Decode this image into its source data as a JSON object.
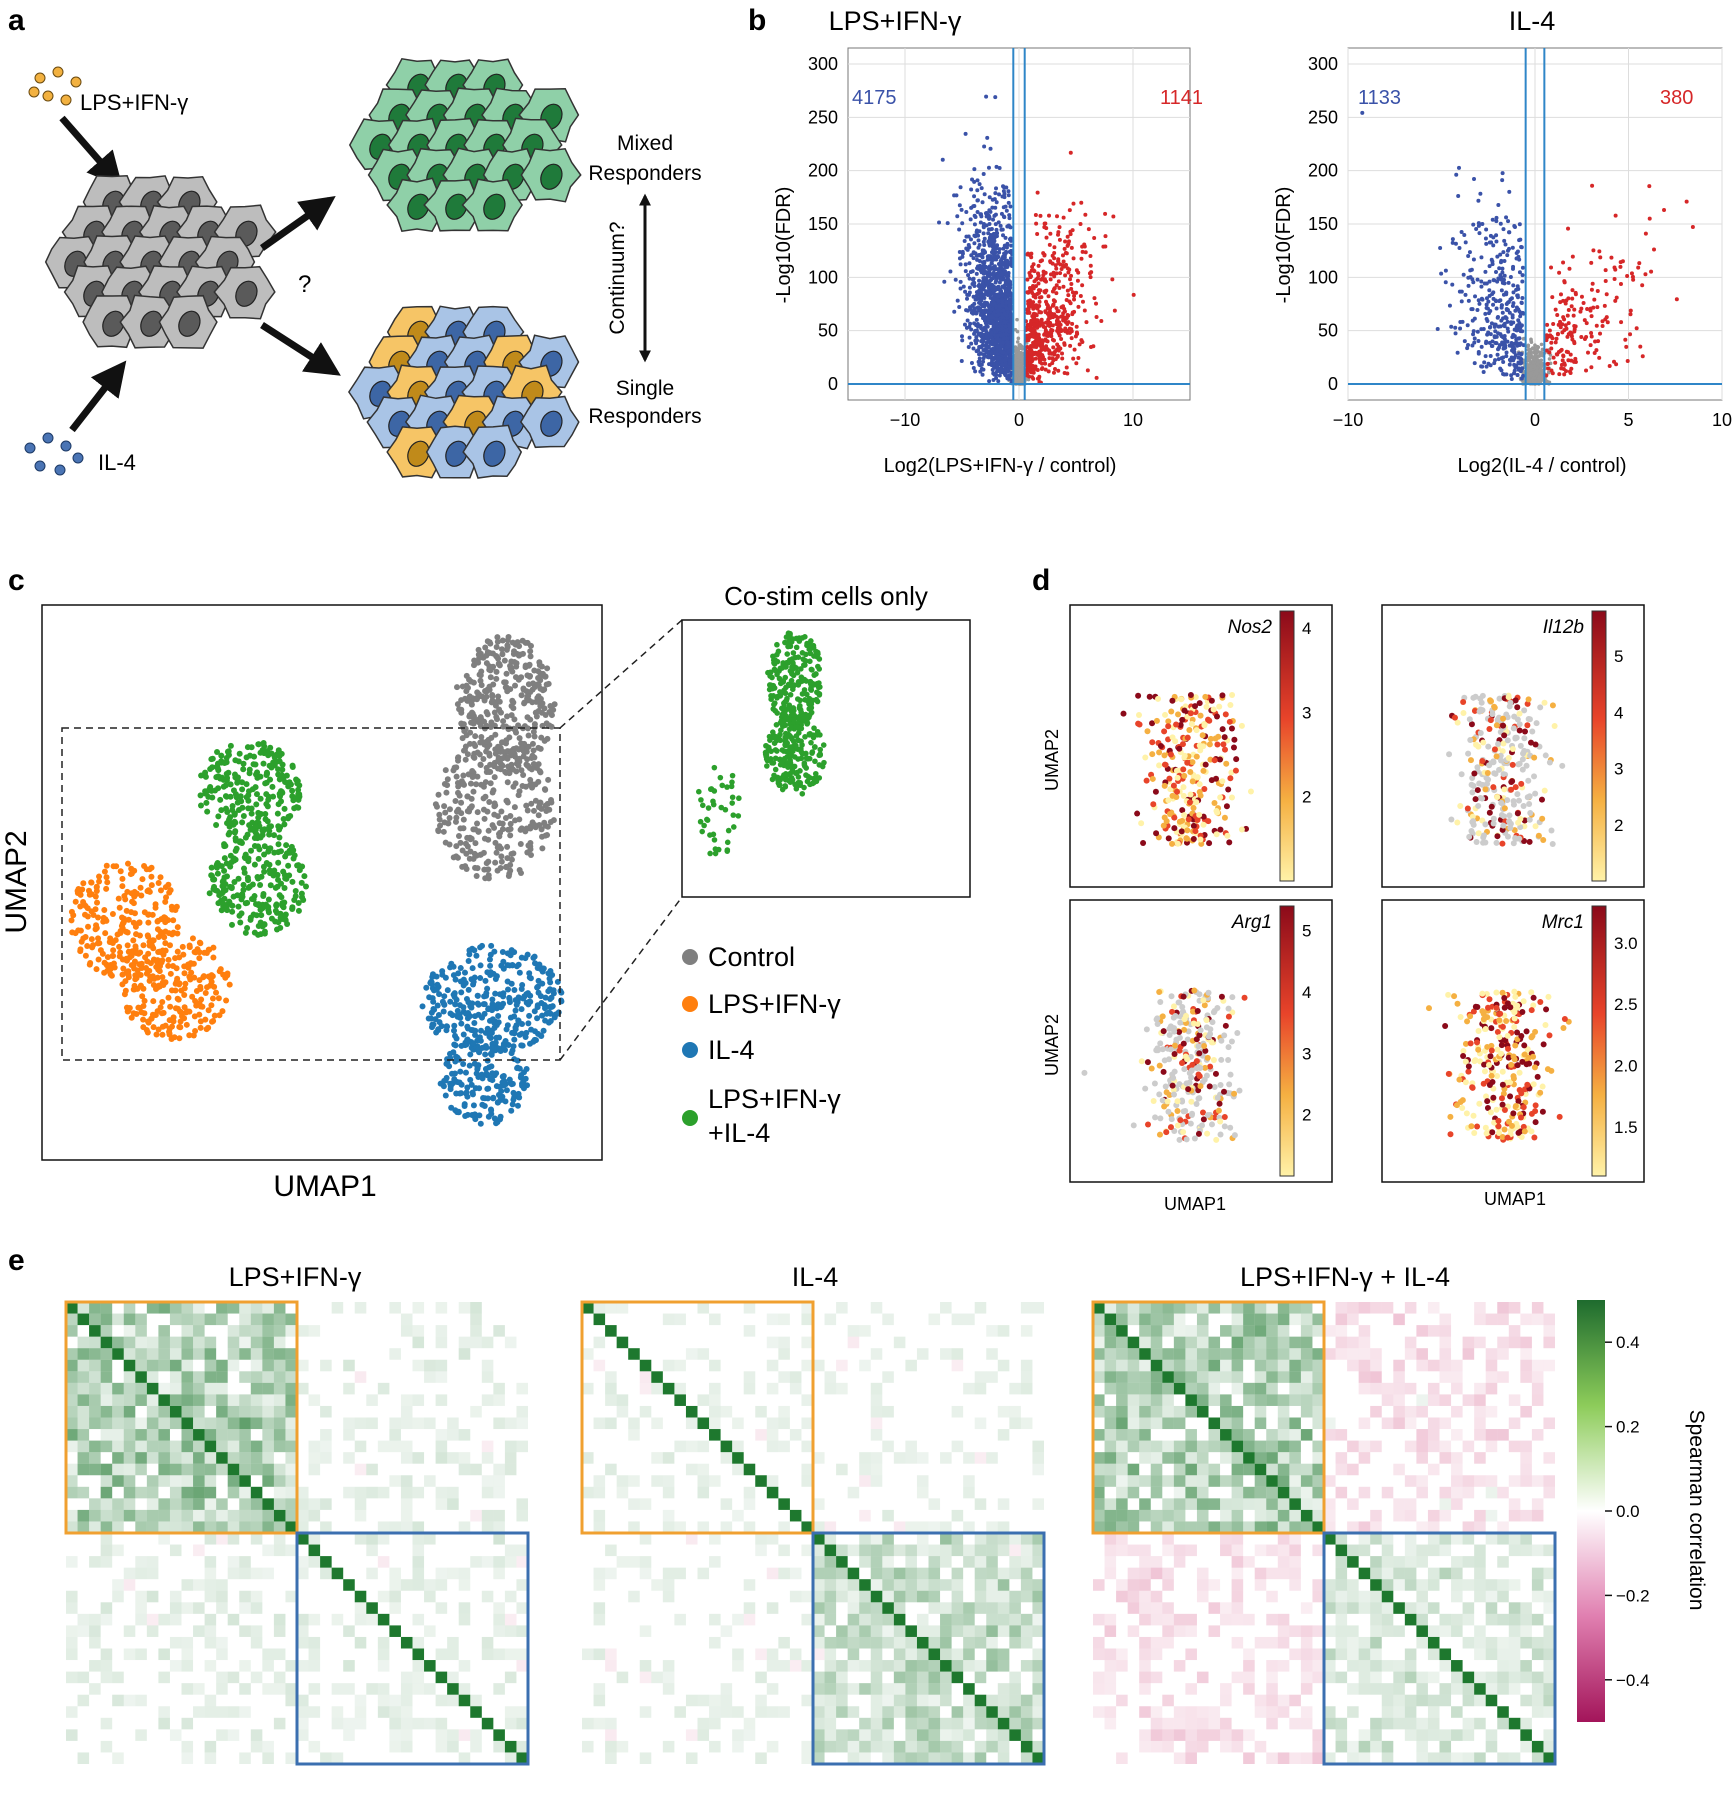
{
  "panel_labels": {
    "a": "a",
    "b": "b",
    "c": "c",
    "d": "d",
    "e": "e"
  },
  "panel_a": {
    "stim1": "LPS+IFN-γ",
    "stim2": "IL-4",
    "question": "?",
    "mixed": [
      "Mixed",
      "Responders"
    ],
    "single": [
      "Single",
      "Responders"
    ],
    "continuum": "Continuum?",
    "colors": {
      "stim1": "#f2b140",
      "stim2": "#4a74b4",
      "gray_cell": "#bdbdbd",
      "green_cell": "#8fd0a8",
      "orange_cell": "#f6c566",
      "blue_cell": "#a9c4e6"
    }
  },
  "panel_b": {
    "volcano_left": {
      "title": "LPS+IFN-γ",
      "ylabel": "-Log10(FDR)",
      "xlabel": "Log2(LPS+IFN-γ / control)",
      "xticks": [
        -10,
        0,
        10
      ],
      "yticks": [
        0,
        50,
        100,
        150,
        200,
        250,
        300
      ],
      "xlim": [
        -15,
        15
      ],
      "ylim": [
        -15,
        315
      ],
      "thresholds_x": [
        -0.5,
        0.5
      ],
      "down_count": "4175",
      "up_count": "1141",
      "down_color": "#3a52a8",
      "up_color": "#d62728"
    },
    "volcano_right": {
      "title": "IL-4",
      "ylabel": "-Log10(FDR)",
      "xlabel": "Log2(IL-4 / control)",
      "xticks": [
        -10,
        0,
        5,
        10
      ],
      "yticks": [
        0,
        50,
        100,
        150,
        200,
        250,
        300
      ],
      "xlim": [
        -10,
        10
      ],
      "ylim": [
        -15,
        315
      ],
      "thresholds_x": [
        -0.5,
        0.5
      ],
      "down_count": "1133",
      "up_count": "380",
      "down_color": "#3a52a8",
      "up_color": "#d62728"
    }
  },
  "panel_c": {
    "xlabel": "UMAP1",
    "ylabel": "UMAP2",
    "inset_title": "Co-stim cells only",
    "legend": [
      {
        "label": "Control",
        "color": "#7f7f7f"
      },
      {
        "label": "LPS+IFN-γ",
        "color": "#ff7f0e"
      },
      {
        "label": "IL-4",
        "color": "#1f77b4"
      },
      {
        "label": "LPS+IFN-γ",
        "label2": "+IL-4",
        "color": "#2ca02c"
      }
    ]
  },
  "panel_d": {
    "xlabel": "UMAP1",
    "ylabel": "UMAP2",
    "genes": [
      {
        "name": "Nos2",
        "ticks": [
          "4",
          "3",
          "2"
        ],
        "range": [
          1,
          4.2
        ]
      },
      {
        "name": "Il12b",
        "ticks": [
          "5",
          "4",
          "3",
          "2"
        ],
        "range": [
          1,
          5.8
        ]
      },
      {
        "name": "Arg1",
        "ticks": [
          "5",
          "4",
          "3",
          "2"
        ],
        "range": [
          1,
          5.4
        ]
      },
      {
        "name": "Mrc1",
        "ticks": [
          "3.0",
          "2.5",
          "2.0",
          "1.5"
        ],
        "range": [
          1.1,
          3.3
        ]
      }
    ]
  },
  "panel_e": {
    "titles": [
      "LPS+IFN-γ",
      "IL-4",
      "LPS+IFN-γ + IL-4"
    ],
    "colorbar_label": "Spearman correlation",
    "colorbar_ticks": [
      "0.4",
      "0.2",
      "0.0",
      "−0.2",
      "−0.4"
    ],
    "colorbar_range": [
      -0.5,
      0.5
    ],
    "box_colors": {
      "orange": "#f0a030",
      "blue": "#3b6fb0"
    },
    "colors": {
      "pos": "#1a7a30",
      "neg": "#c2185b"
    }
  }
}
